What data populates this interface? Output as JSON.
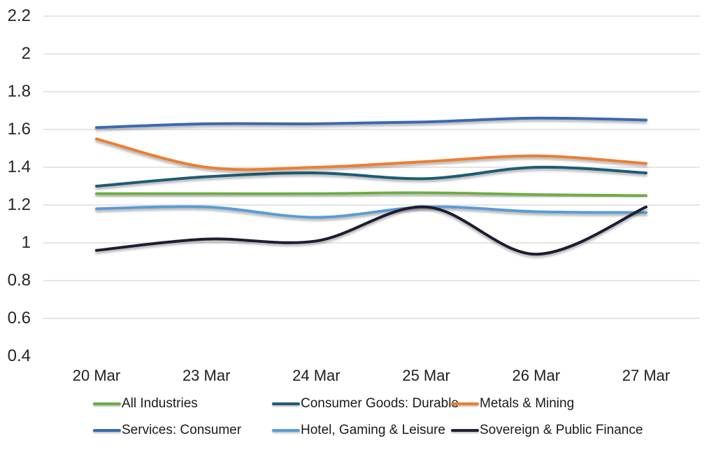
{
  "chart_data": {
    "type": "line",
    "title": "",
    "xlabel": "",
    "ylabel": "",
    "categories": [
      "20 Mar",
      "23 Mar",
      "24 Mar",
      "25 Mar",
      "26 Mar",
      "27 Mar"
    ],
    "series": [
      {
        "name": "All Industries",
        "color": "#6FAC46",
        "values": [
          1.26,
          1.26,
          1.26,
          1.265,
          1.255,
          1.25
        ]
      },
      {
        "name": "Consumer Goods: Durable",
        "color": "#1F5C73",
        "values": [
          1.3,
          1.35,
          1.37,
          1.34,
          1.4,
          1.37
        ]
      },
      {
        "name": "Metals & Mining",
        "color": "#ED7D31",
        "values": [
          1.55,
          1.4,
          1.4,
          1.43,
          1.46,
          1.42
        ]
      },
      {
        "name": "Services: Consumer",
        "color": "#3C68B1",
        "values": [
          1.61,
          1.63,
          1.63,
          1.64,
          1.66,
          1.65
        ]
      },
      {
        "name": "Hotel, Gaming & Leisure",
        "color": "#5B9BD5",
        "values": [
          1.18,
          1.19,
          1.135,
          1.19,
          1.165,
          1.16
        ]
      },
      {
        "name": "Sovereign & Public Finance",
        "color": "#1F1F30",
        "values": [
          0.96,
          1.02,
          1.01,
          1.19,
          0.94,
          1.19
        ]
      }
    ],
    "yticks": [
      {
        "label": "2.2",
        "value": 2.2,
        "gridline": true
      },
      {
        "label": "2",
        "value": 2.0,
        "gridline": true
      },
      {
        "label": "1.8",
        "value": 1.8,
        "gridline": true
      },
      {
        "label": "1.6",
        "value": 1.6,
        "gridline": true
      },
      {
        "label": "1.4",
        "value": 1.4,
        "gridline": true
      },
      {
        "label": "1.2",
        "value": 1.2,
        "gridline": true
      },
      {
        "label": "1",
        "value": 1.0,
        "gridline": true
      },
      {
        "label": "0.8",
        "value": 0.8,
        "gridline": true
      },
      {
        "label": "0.6",
        "value": 0.6,
        "gridline": true
      },
      {
        "label": "0.4",
        "value": 0.4,
        "gridline": false
      }
    ],
    "ylim": [
      0.4,
      2.2
    ],
    "grid": "horizontal",
    "gridline_color": "#e5e5e5",
    "background_color": "#ffffff",
    "legend_position": "bottom",
    "line_smoothing": true
  }
}
